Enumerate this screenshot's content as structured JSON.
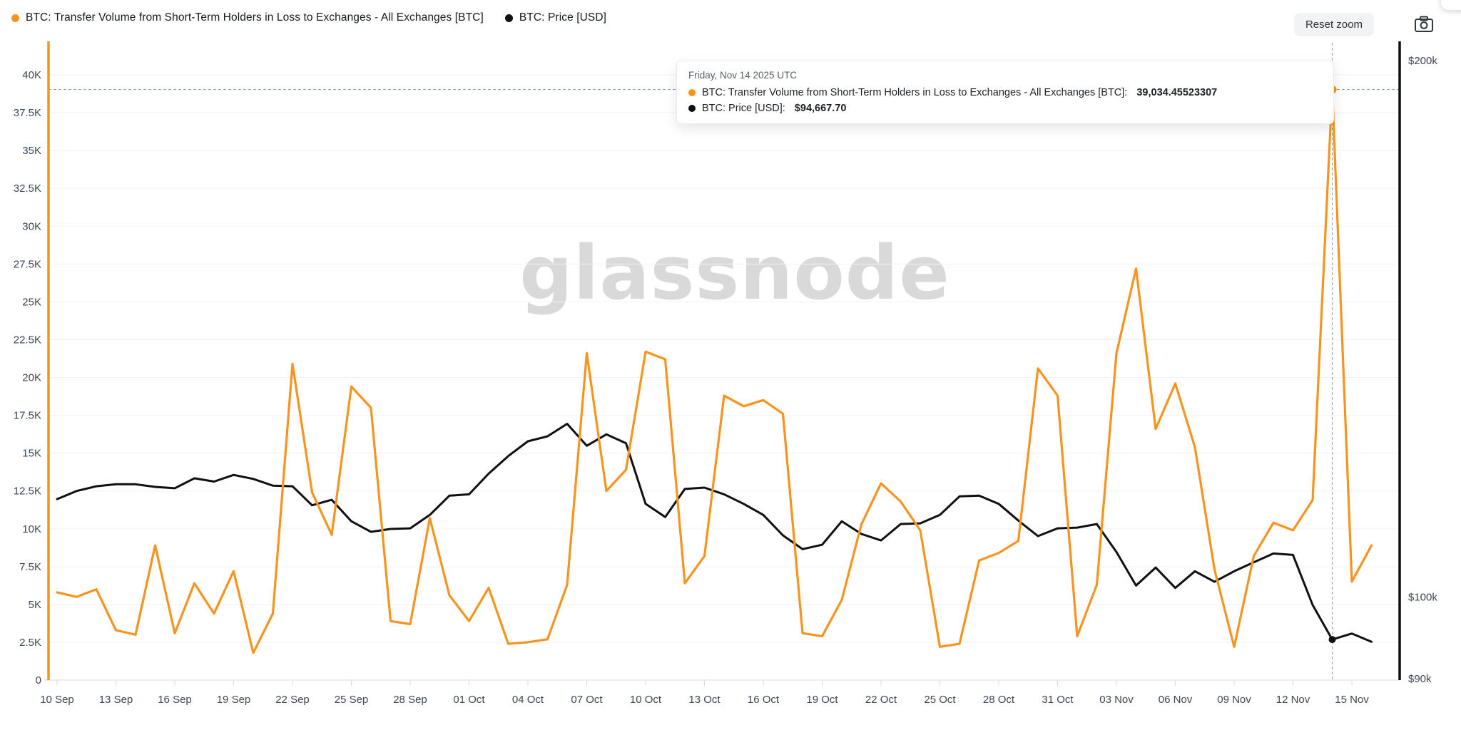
{
  "header": {
    "legend": [
      {
        "label": "BTC: Transfer Volume from Short-Term Holders in Loss to Exchanges - All Exchanges [BTC]",
        "color": "#F7941E"
      },
      {
        "label": "BTC: Price [USD]",
        "color": "#0F1011"
      }
    ],
    "reset_zoom_label": "Reset zoom"
  },
  "watermark": "glassnode",
  "tooltip": {
    "title": "Friday, Nov 14 2025 UTC",
    "rows": [
      {
        "label": "BTC: Transfer Volume from Short-Term Holders in Loss to Exchanges - All Exchanges [BTC]:",
        "value": "39,034.45523307",
        "color": "#F7941E"
      },
      {
        "label": "BTC: Price [USD]:",
        "value": "$94,667.70",
        "color": "#0F1011"
      }
    ]
  },
  "chart_data": {
    "type": "line",
    "title": "",
    "x": [
      "2025-09-10",
      "2025-09-11",
      "2025-09-12",
      "2025-09-13",
      "2025-09-14",
      "2025-09-15",
      "2025-09-16",
      "2025-09-17",
      "2025-09-18",
      "2025-09-19",
      "2025-09-20",
      "2025-09-21",
      "2025-09-22",
      "2025-09-23",
      "2025-09-24",
      "2025-09-25",
      "2025-09-26",
      "2025-09-27",
      "2025-09-28",
      "2025-09-29",
      "2025-09-30",
      "2025-10-01",
      "2025-10-02",
      "2025-10-03",
      "2025-10-04",
      "2025-10-05",
      "2025-10-06",
      "2025-10-07",
      "2025-10-08",
      "2025-10-09",
      "2025-10-10",
      "2025-10-11",
      "2025-10-12",
      "2025-10-13",
      "2025-10-14",
      "2025-10-15",
      "2025-10-16",
      "2025-10-17",
      "2025-10-18",
      "2025-10-19",
      "2025-10-20",
      "2025-10-21",
      "2025-10-22",
      "2025-10-23",
      "2025-10-24",
      "2025-10-25",
      "2025-10-26",
      "2025-10-27",
      "2025-10-28",
      "2025-10-29",
      "2025-10-30",
      "2025-10-31",
      "2025-11-01",
      "2025-11-02",
      "2025-11-03",
      "2025-11-04",
      "2025-11-05",
      "2025-11-06",
      "2025-11-07",
      "2025-11-08",
      "2025-11-09",
      "2025-11-10",
      "2025-11-11",
      "2025-11-12",
      "2025-11-13",
      "2025-11-14",
      "2025-11-15",
      "2025-11-16"
    ],
    "x_tick_labels": [
      "10 Sep",
      "13 Sep",
      "16 Sep",
      "19 Sep",
      "22 Sep",
      "25 Sep",
      "28 Sep",
      "01 Oct",
      "04 Oct",
      "07 Oct",
      "10 Oct",
      "13 Oct",
      "16 Oct",
      "19 Oct",
      "22 Oct",
      "25 Oct",
      "28 Oct",
      "31 Oct",
      "03 Nov",
      "06 Nov",
      "09 Nov",
      "12 Nov",
      "15 Nov"
    ],
    "series": [
      {
        "name": "BTC: Transfer Volume from Short-Term Holders in Loss to Exchanges - All Exchanges [BTC]",
        "axis": "left",
        "unit": "BTC",
        "color": "#F7941E",
        "values": [
          5800,
          5500,
          6000,
          3300,
          3000,
          8900,
          3100,
          6400,
          4400,
          7200,
          1800,
          4400,
          20900,
          12400,
          9600,
          19400,
          18000,
          3900,
          3700,
          10700,
          5600,
          3900,
          6100,
          2400,
          2500,
          2700,
          6300,
          21600,
          12500,
          13900,
          21700,
          21200,
          6400,
          8200,
          18800,
          18100,
          18500,
          17600,
          3100,
          2900,
          5300,
          10300,
          13000,
          11800,
          9900,
          2200,
          2400,
          7900,
          8400,
          9200,
          20600,
          18800,
          2900,
          6300,
          21600,
          27200,
          16600,
          19600,
          15400,
          7300,
          2200,
          8200,
          10400,
          9900,
          11900,
          39034.45523307,
          6500,
          8900
        ]
      },
      {
        "name": "BTC: Price [USD]",
        "axis": "right",
        "unit": "USD",
        "color": "#0F1011",
        "values": [
          113500,
          114700,
          115400,
          115700,
          115700,
          115300,
          115100,
          116600,
          116100,
          117100,
          116500,
          115500,
          115400,
          112600,
          113400,
          110300,
          108800,
          109200,
          109300,
          111200,
          114000,
          114200,
          117300,
          120000,
          122300,
          123100,
          125100,
          121600,
          123400,
          122000,
          112800,
          110900,
          115000,
          115200,
          114200,
          112800,
          111200,
          108300,
          106400,
          107000,
          110300,
          108500,
          107600,
          109900,
          110000,
          111200,
          113900,
          114000,
          112800,
          110400,
          108200,
          109300,
          109400,
          109900,
          106000,
          101500,
          103900,
          101200,
          103400,
          102000,
          103400,
          104600,
          105800,
          105600,
          99000,
          94667.7,
          95400,
          94400
        ]
      }
    ],
    "left_axis": {
      "min": 0,
      "max": 40000,
      "tick_step": 2500,
      "tick_labels": [
        "0",
        "2.5K",
        "5K",
        "7.5K",
        "10K",
        "12.5K",
        "15K",
        "17.5K",
        "20K",
        "22.5K",
        "25K",
        "27.5K",
        "30K",
        "32.5K",
        "35K",
        "37.5K",
        "40K"
      ]
    },
    "right_axis": {
      "scale": "log",
      "ticks": [
        {
          "label": "$200k",
          "value": 200000
        },
        {
          "label": "$100k",
          "value": 100000
        },
        {
          "label": "$90k",
          "value": 90000
        }
      ]
    },
    "grid": true,
    "legend_position": "top-left",
    "highlight": {
      "index": 65,
      "date": "2025-11-14",
      "volume": 39034.45523307,
      "price": 94667.7,
      "crosshair_color": "#8AA0B8"
    }
  },
  "layout_colors": {
    "grid": "#f2f3f4",
    "axis_bottom": "#e4e6e8",
    "tick_mark": "#d9dcdf"
  }
}
